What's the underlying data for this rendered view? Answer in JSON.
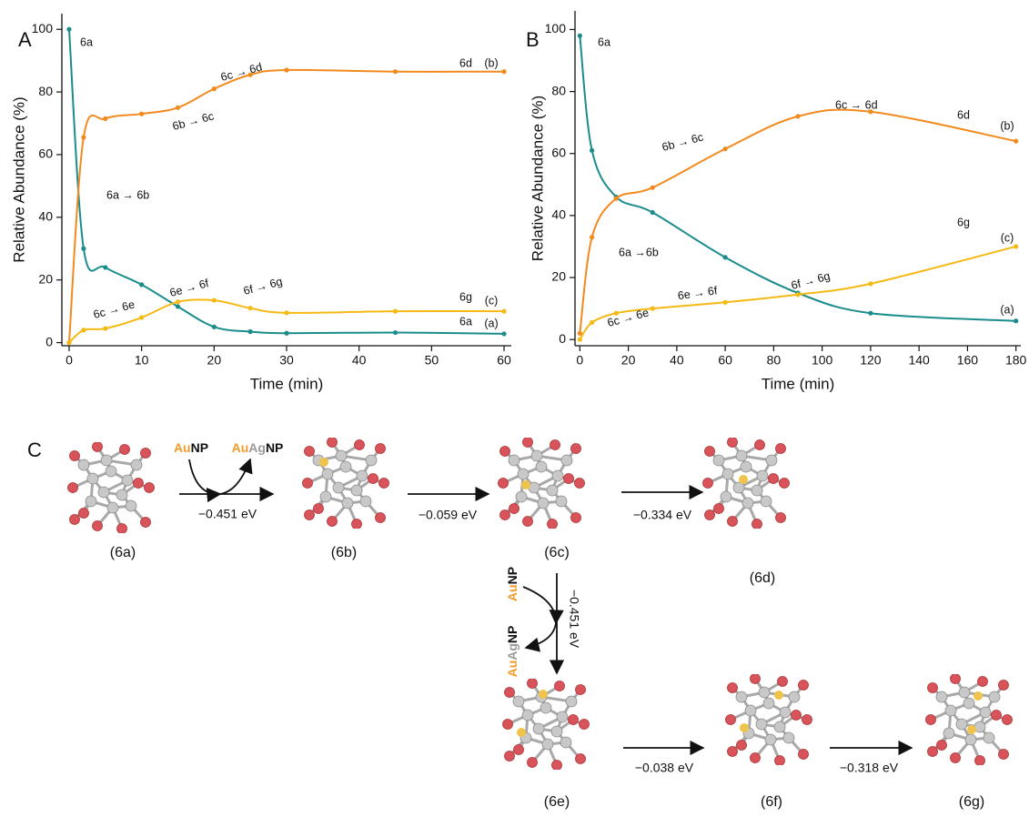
{
  "chart_data": [
    {
      "type": "line",
      "panel": "A",
      "xlabel": "Time (min)",
      "ylabel": "Relative Abundance (%)",
      "x": [
        0,
        2,
        5,
        10,
        15,
        20,
        25,
        30,
        45,
        60
      ],
      "series": [
        {
          "name": "(a)",
          "color": "#1a8c8c",
          "values": [
            100,
            30,
            24,
            18.5,
            11.5,
            5,
            3.5,
            3,
            3.2,
            2.8
          ]
        },
        {
          "name": "(b)",
          "color": "#f28a1e",
          "values": [
            0,
            65.5,
            71.5,
            73,
            75,
            81,
            85.5,
            87,
            86.5,
            86.5
          ]
        },
        {
          "name": "(c)",
          "color": "#f5b914",
          "values": [
            0,
            4,
            4.5,
            8,
            13,
            13.5,
            11,
            9.5,
            10,
            10
          ]
        }
      ],
      "annotations": [
        "6a",
        "6d",
        "6g",
        "6a",
        "6c → 6d",
        "6b → 6c",
        "6a → 6b",
        "6c → 6e",
        "6e → 6f",
        "6f → 6g"
      ],
      "xlim": [
        -1,
        61
      ],
      "ylim": [
        -1,
        105
      ],
      "xticks": [
        0,
        10,
        20,
        30,
        40,
        50,
        60
      ],
      "yticks": [
        0,
        20,
        40,
        60,
        80,
        100
      ],
      "smooth": true,
      "grid": false
    },
    {
      "type": "line",
      "panel": "B",
      "xlabel": "Time (min)",
      "ylabel": "Relative Abundance (%)",
      "x": [
        0,
        5,
        15,
        30,
        60,
        90,
        120,
        180
      ],
      "series": [
        {
          "name": "(a)",
          "color": "#1a8c8c",
          "values": [
            98,
            61,
            46,
            41,
            26.5,
            15,
            8.5,
            6
          ]
        },
        {
          "name": "(b)",
          "color": "#f28a1e",
          "values": [
            2,
            33,
            45.5,
            49,
            61.5,
            72,
            73.5,
            64
          ]
        },
        {
          "name": "(c)",
          "color": "#f5b914",
          "values": [
            0,
            5.5,
            8.5,
            10,
            12,
            14.5,
            18,
            30
          ]
        }
      ],
      "annotations": [
        "6a",
        "6c → 6d",
        "6d",
        "6b → 6c",
        "6a →6b",
        "6g",
        "6c → 6e",
        "6e → 6f",
        "6f → 6g"
      ],
      "xlim": [
        -2,
        182
      ],
      "ylim": [
        -2,
        106
      ],
      "xticks": [
        0,
        20,
        40,
        60,
        80,
        100,
        120,
        140,
        160,
        180
      ],
      "yticks": [
        0,
        20,
        40,
        60,
        80,
        100
      ],
      "smooth": true,
      "grid": false
    }
  ],
  "diagram": {
    "label": "C",
    "compounds": [
      "(6a)",
      "(6b)",
      "(6c)",
      "(6d)",
      "(6e)",
      "(6f)",
      "(6g)"
    ],
    "energies": [
      "−0.451 eV",
      "−0.059 eV",
      "−0.334 eV",
      "−0.451 eV",
      "−0.038 eV",
      "−0.318 eV"
    ],
    "reagents": [
      [
        "Au",
        "NP"
      ],
      [
        "Au",
        "Ag",
        "NP"
      ],
      [
        "Au",
        "NP"
      ],
      [
        "Au",
        "Ag",
        "NP"
      ]
    ]
  }
}
